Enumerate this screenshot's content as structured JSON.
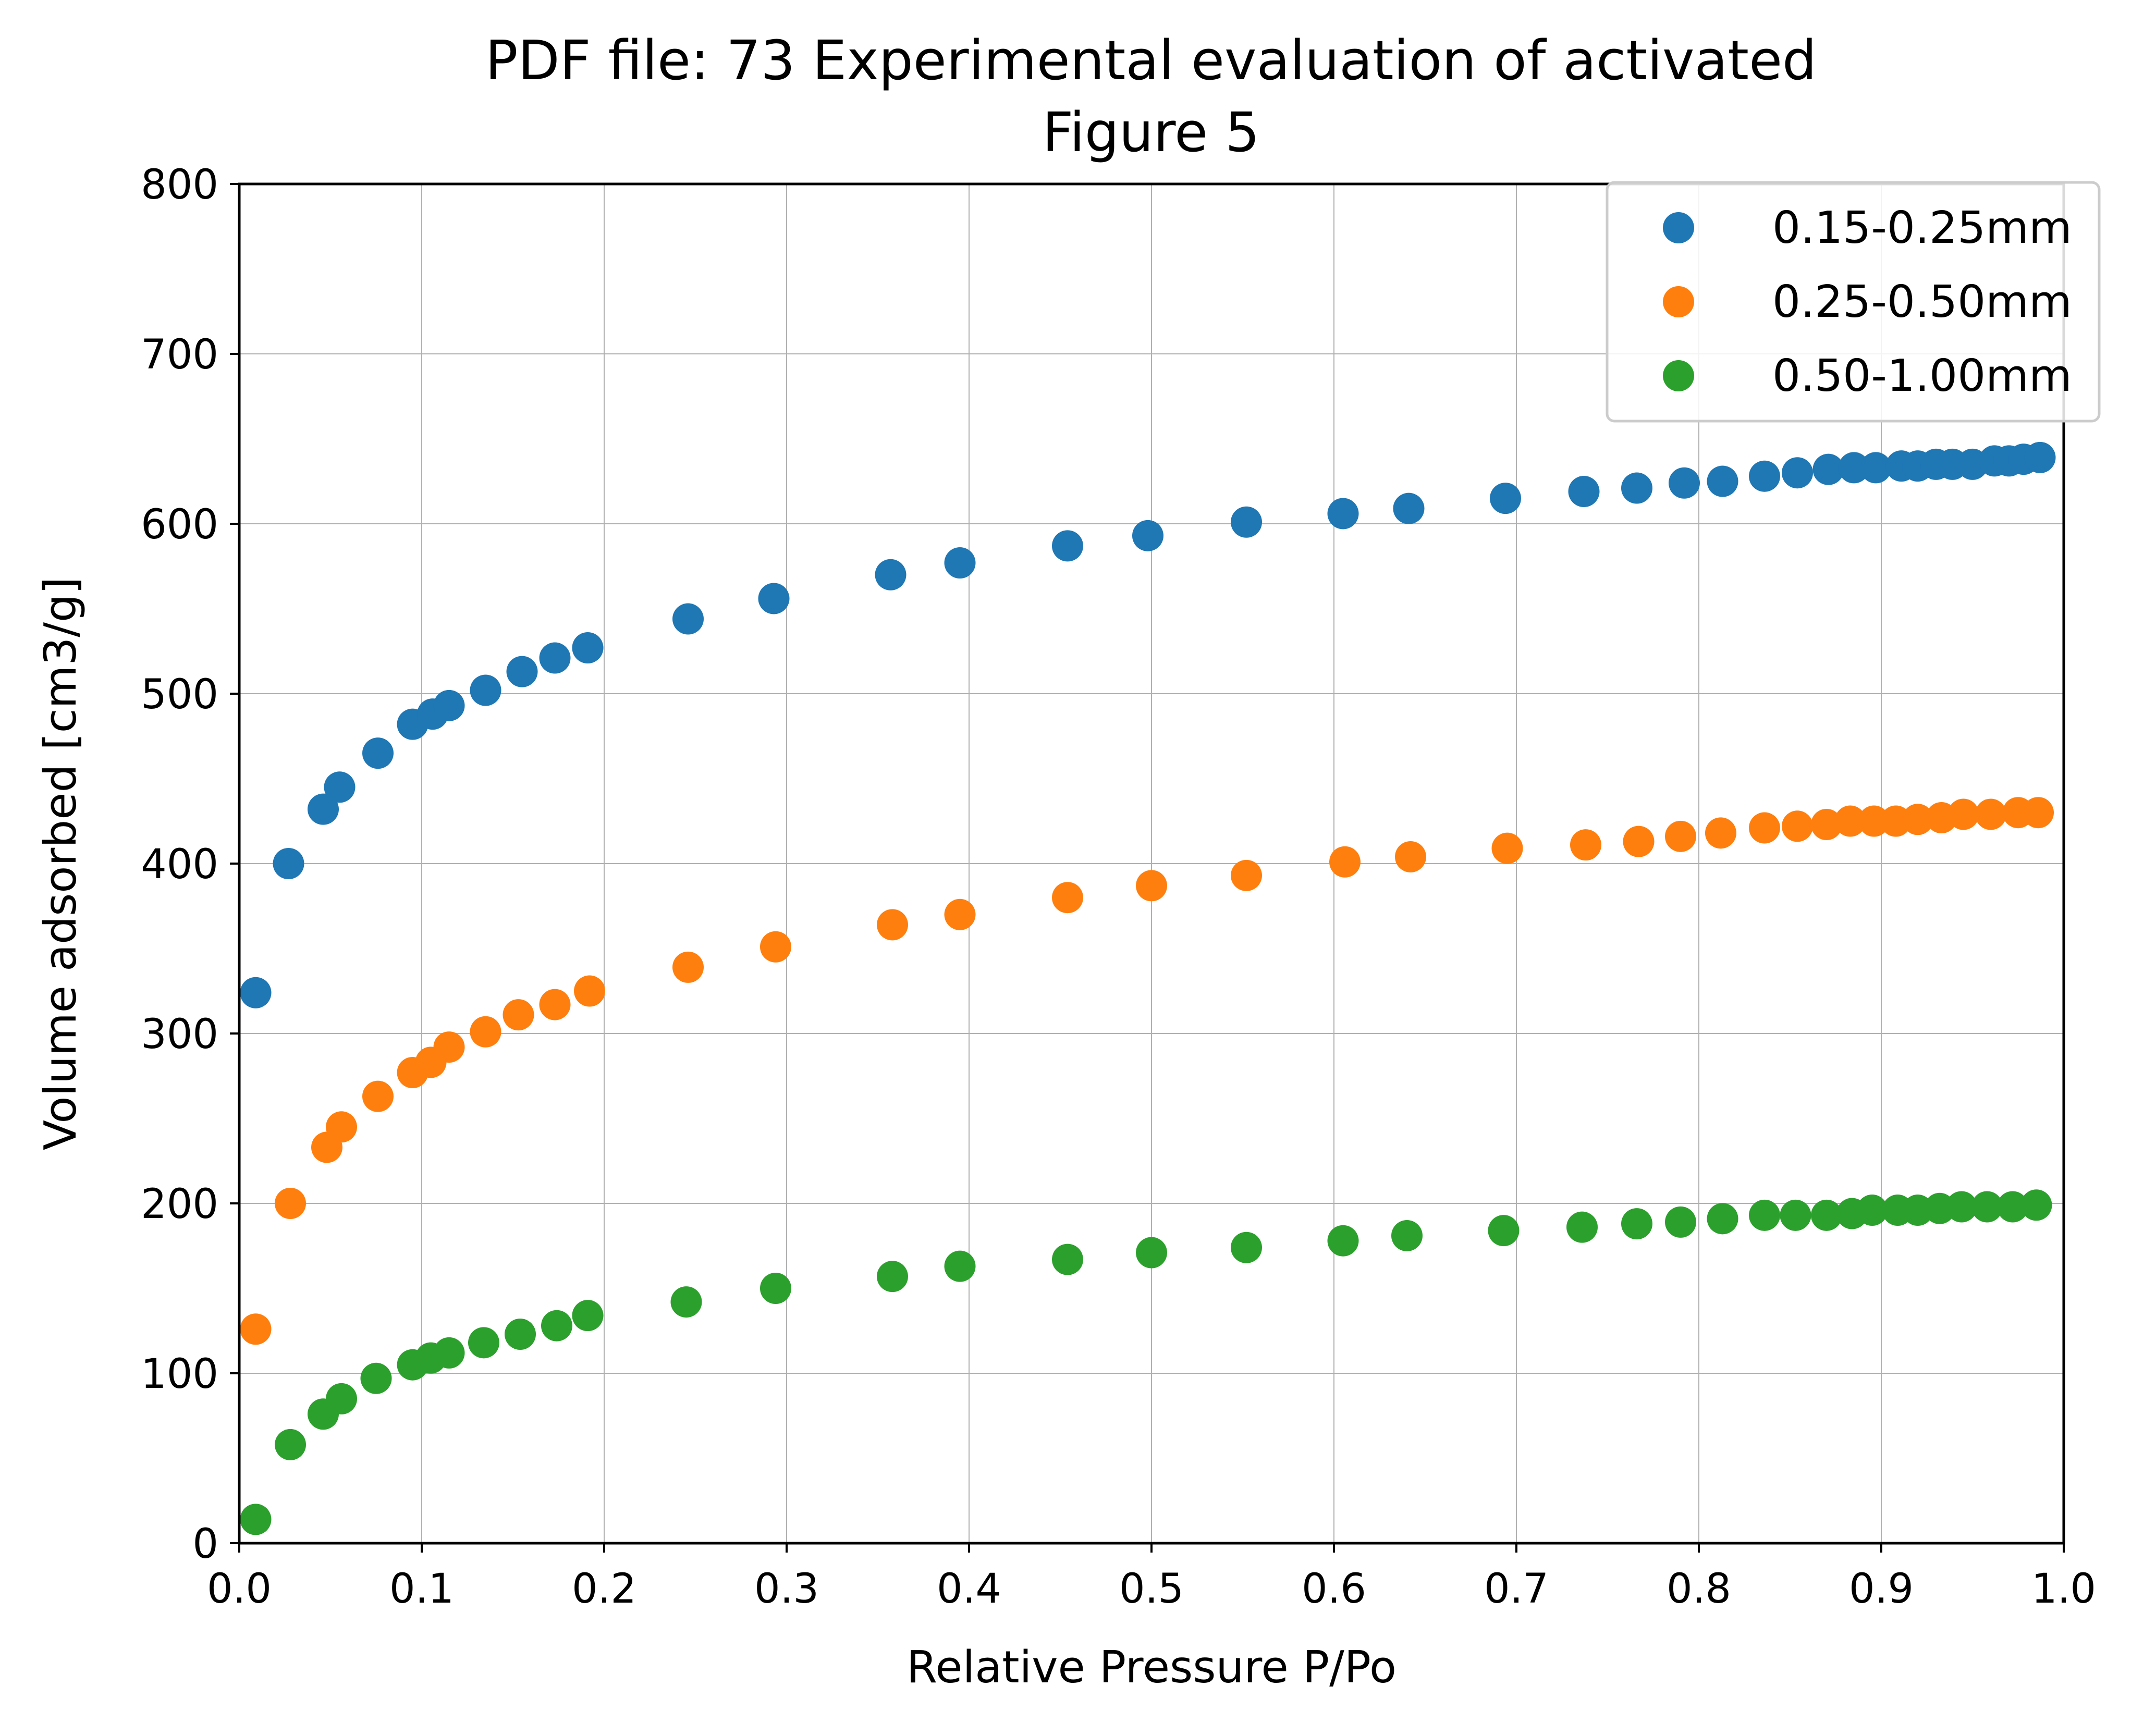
{
  "chart_data": {
    "type": "scatter",
    "title": "PDF file: 73 Experimental evaluation of activated",
    "subtitle": "Figure 5",
    "xlabel": "Relative Pressure P/Po",
    "ylabel": "Volume adsorbed [cm3/g]",
    "xlim": [
      0.0,
      1.0
    ],
    "ylim": [
      0,
      800
    ],
    "xticks": [
      "0.0",
      "0.1",
      "0.2",
      "0.3",
      "0.4",
      "0.5",
      "0.6",
      "0.7",
      "0.8",
      "0.9",
      "1.0"
    ],
    "yticks": [
      "0",
      "100",
      "200",
      "300",
      "400",
      "500",
      "600",
      "700",
      "800"
    ],
    "grid": true,
    "legend_position": "top-right",
    "series": [
      {
        "name": "0.15-0.25mm",
        "color": "#1f77b4",
        "points": [
          [
            0.009,
            324
          ],
          [
            0.027,
            400
          ],
          [
            0.046,
            432
          ],
          [
            0.055,
            445
          ],
          [
            0.076,
            465
          ],
          [
            0.095,
            482
          ],
          [
            0.106,
            488
          ],
          [
            0.115,
            493
          ],
          [
            0.135,
            502
          ],
          [
            0.155,
            513
          ],
          [
            0.173,
            521
          ],
          [
            0.191,
            527
          ],
          [
            0.246,
            544
          ],
          [
            0.293,
            556
          ],
          [
            0.357,
            570
          ],
          [
            0.395,
            577
          ],
          [
            0.454,
            587
          ],
          [
            0.498,
            593
          ],
          [
            0.552,
            601
          ],
          [
            0.605,
            606
          ],
          [
            0.641,
            609
          ],
          [
            0.694,
            615
          ],
          [
            0.737,
            619
          ],
          [
            0.766,
            621
          ],
          [
            0.792,
            624
          ],
          [
            0.813,
            625
          ],
          [
            0.836,
            628
          ],
          [
            0.854,
            630
          ],
          [
            0.871,
            632
          ],
          [
            0.885,
            633
          ],
          [
            0.897,
            633
          ],
          [
            0.911,
            634
          ],
          [
            0.92,
            634
          ],
          [
            0.93,
            635
          ],
          [
            0.939,
            635
          ],
          [
            0.95,
            635
          ],
          [
            0.962,
            637
          ],
          [
            0.97,
            637
          ],
          [
            0.978,
            638
          ],
          [
            0.987,
            639
          ]
        ]
      },
      {
        "name": "0.25-0.50mm",
        "color": "#ff7f0e",
        "points": [
          [
            0.009,
            126
          ],
          [
            0.028,
            200
          ],
          [
            0.048,
            233
          ],
          [
            0.056,
            245
          ],
          [
            0.076,
            263
          ],
          [
            0.095,
            277
          ],
          [
            0.105,
            283
          ],
          [
            0.115,
            292
          ],
          [
            0.135,
            301
          ],
          [
            0.153,
            311
          ],
          [
            0.173,
            317
          ],
          [
            0.192,
            325
          ],
          [
            0.246,
            339
          ],
          [
            0.294,
            351
          ],
          [
            0.358,
            364
          ],
          [
            0.395,
            370
          ],
          [
            0.454,
            380
          ],
          [
            0.5,
            387
          ],
          [
            0.552,
            393
          ],
          [
            0.606,
            401
          ],
          [
            0.642,
            404
          ],
          [
            0.695,
            409
          ],
          [
            0.738,
            411
          ],
          [
            0.767,
            413
          ],
          [
            0.79,
            416
          ],
          [
            0.812,
            418
          ],
          [
            0.836,
            421
          ],
          [
            0.854,
            422
          ],
          [
            0.87,
            423
          ],
          [
            0.883,
            425
          ],
          [
            0.896,
            425
          ],
          [
            0.908,
            425
          ],
          [
            0.92,
            426
          ],
          [
            0.933,
            427
          ],
          [
            0.945,
            429
          ],
          [
            0.96,
            429
          ],
          [
            0.975,
            430
          ],
          [
            0.986,
            430
          ]
        ]
      },
      {
        "name": "0.50-1.00mm",
        "color": "#2ca02c",
        "points": [
          [
            0.009,
            14
          ],
          [
            0.028,
            58
          ],
          [
            0.046,
            76
          ],
          [
            0.056,
            85
          ],
          [
            0.075,
            97
          ],
          [
            0.095,
            105
          ],
          [
            0.105,
            109
          ],
          [
            0.115,
            112
          ],
          [
            0.134,
            118
          ],
          [
            0.154,
            123
          ],
          [
            0.174,
            128
          ],
          [
            0.191,
            134
          ],
          [
            0.245,
            142
          ],
          [
            0.294,
            150
          ],
          [
            0.358,
            157
          ],
          [
            0.395,
            163
          ],
          [
            0.454,
            167
          ],
          [
            0.5,
            171
          ],
          [
            0.552,
            174
          ],
          [
            0.605,
            178
          ],
          [
            0.64,
            181
          ],
          [
            0.693,
            184
          ],
          [
            0.736,
            186
          ],
          [
            0.766,
            188
          ],
          [
            0.79,
            189
          ],
          [
            0.813,
            191
          ],
          [
            0.836,
            193
          ],
          [
            0.853,
            193
          ],
          [
            0.87,
            193
          ],
          [
            0.884,
            194
          ],
          [
            0.895,
            196
          ],
          [
            0.909,
            196
          ],
          [
            0.92,
            196
          ],
          [
            0.932,
            197
          ],
          [
            0.944,
            198
          ],
          [
            0.958,
            198
          ],
          [
            0.972,
            198
          ],
          [
            0.985,
            199
          ]
        ]
      }
    ]
  }
}
